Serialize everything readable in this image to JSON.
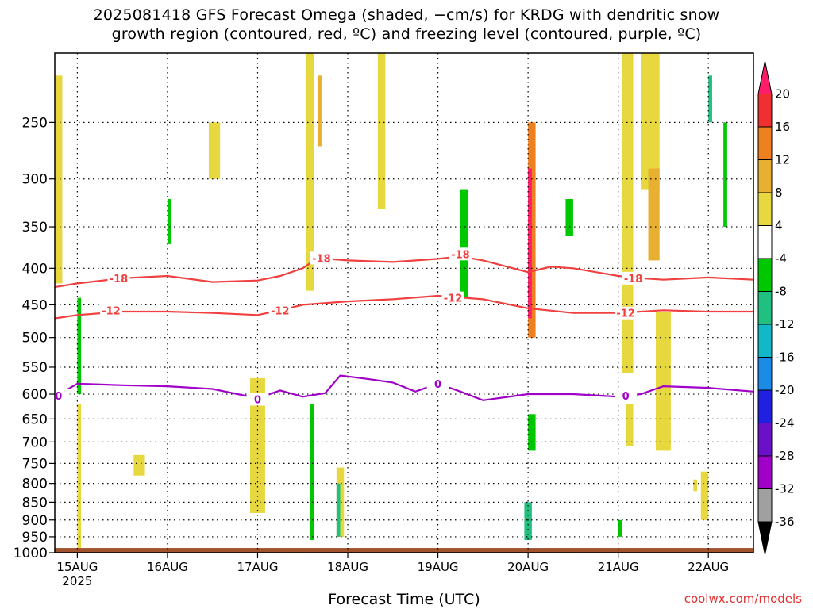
{
  "title": {
    "line1": "2025081418 GFS Forecast Omega (shaded, −cm/s) for KRDG with dendritic snow",
    "line2": "growth region (contoured, red, ºC) and freezing level (contoured, purple, ºC)"
  },
  "xlabel": "Forecast Time (UTC)",
  "credit": "coolwx.com/models",
  "chart_data": {
    "type": "heatmap",
    "title": "2025081418 GFS Forecast Omega (shaded, −cm/s) for KRDG with dendritic snow growth region (contoured, red, ºC) and freezing level (contoured, purple, ºC)",
    "xlabel": "Forecast Time (UTC)",
    "ylabel": "",
    "y_scale": "log",
    "ylim": [
      1000,
      200
    ],
    "xlim": [
      "2025-08-14T18",
      "2025-08-22T12"
    ],
    "y_ticks": [
      250,
      300,
      350,
      400,
      450,
      500,
      550,
      600,
      650,
      700,
      750,
      800,
      850,
      900,
      950,
      1000
    ],
    "x_ticks": [
      {
        "t": "2025-08-15T00",
        "label": "15AUG",
        "sub": "2025"
      },
      {
        "t": "2025-08-16T00",
        "label": "16AUG"
      },
      {
        "t": "2025-08-17T00",
        "label": "17AUG"
      },
      {
        "t": "2025-08-18T00",
        "label": "18AUG"
      },
      {
        "t": "2025-08-19T00",
        "label": "19AUG"
      },
      {
        "t": "2025-08-20T00",
        "label": "20AUG"
      },
      {
        "t": "2025-08-21T00",
        "label": "21AUG"
      },
      {
        "t": "2025-08-22T00",
        "label": "22AUG"
      }
    ],
    "grid": true,
    "ground_level_hpa": 985,
    "colorbar": {
      "labels": [
        20,
        16,
        12,
        8,
        4,
        -4,
        -8,
        -12,
        -16,
        -20,
        -24,
        -28,
        -32,
        -36
      ],
      "colors": [
        "#ff1c6a",
        "#f03030",
        "#ee8020",
        "#e8b030",
        "#e8d840",
        "#ffffff",
        "#00c800",
        "#20c080",
        "#10b8c8",
        "#1a8ce8",
        "#2020e0",
        "#6a10c8",
        "#a000c8",
        "#a0a0a0",
        "#000000"
      ]
    },
    "omega_regions": [
      {
        "t0": "2025-08-15T00",
        "t1": "2025-08-15T01",
        "p_top": 620,
        "p_bot": 985,
        "v": 5
      },
      {
        "t0": "2025-08-14T18",
        "t1": "2025-08-14T20",
        "p_top": 215,
        "p_bot": 420,
        "v": 5
      },
      {
        "t0": "2025-08-15T15",
        "t1": "2025-08-15T18",
        "p_top": 730,
        "p_bot": 780,
        "v": 5
      },
      {
        "t0": "2025-08-16T11",
        "t1": "2025-08-16T14",
        "p_top": 250,
        "p_bot": 300,
        "v": 5
      },
      {
        "t0": "2025-08-16T22",
        "t1": "2025-08-17T02",
        "p_top": 570,
        "p_bot": 880,
        "v": 6
      },
      {
        "t0": "2025-08-17T13",
        "t1": "2025-08-17T15",
        "p_top": 200,
        "p_bot": 430,
        "v": 6
      },
      {
        "t0": "2025-08-17T16",
        "t1": "2025-08-17T17",
        "p_top": 215,
        "p_bot": 270,
        "v": 11
      },
      {
        "t0": "2025-08-17T21",
        "t1": "2025-08-17T23",
        "p_top": 760,
        "p_bot": 950,
        "v": 6
      },
      {
        "t0": "2025-08-18T08",
        "t1": "2025-08-18T10",
        "p_top": 200,
        "p_bot": 330,
        "v": 5
      },
      {
        "t0": "2025-08-20T00",
        "t1": "2025-08-20T02",
        "p_top": 250,
        "p_bot": 500,
        "v": 12
      },
      {
        "t0": "2025-08-20T00",
        "t1": "2025-08-20T01",
        "p_top": 290,
        "p_bot": 470,
        "v": 20
      },
      {
        "t0": "2025-08-21T01",
        "t1": "2025-08-21T04",
        "p_top": 200,
        "p_bot": 560,
        "v": 5
      },
      {
        "t0": "2025-08-21T02",
        "t1": "2025-08-21T04",
        "p_top": 620,
        "p_bot": 710,
        "v": 5
      },
      {
        "t0": "2025-08-21T06",
        "t1": "2025-08-21T11",
        "p_top": 200,
        "p_bot": 310,
        "v": 5
      },
      {
        "t0": "2025-08-21T08",
        "t1": "2025-08-21T11",
        "p_top": 290,
        "p_bot": 390,
        "v": 9
      },
      {
        "t0": "2025-08-21T10",
        "t1": "2025-08-21T14",
        "p_top": 460,
        "p_bot": 720,
        "v": 5
      },
      {
        "t0": "2025-08-21T20",
        "t1": "2025-08-21T21",
        "p_top": 790,
        "p_bot": 820,
        "v": 5
      },
      {
        "t0": "2025-08-21T22",
        "t1": "2025-08-22T00",
        "p_top": 770,
        "p_bot": 900,
        "v": 5
      },
      {
        "t0": "2025-08-15T00",
        "t1": "2025-08-15T01",
        "p_top": 440,
        "p_bot": 600,
        "v": -6
      },
      {
        "t0": "2025-08-16T00",
        "t1": "2025-08-16T01",
        "p_top": 320,
        "p_bot": 370,
        "v": -6
      },
      {
        "t0": "2025-08-17T14",
        "t1": "2025-08-17T15",
        "p_top": 620,
        "p_bot": 960,
        "v": -6
      },
      {
        "t0": "2025-08-17T21",
        "t1": "2025-08-17T22",
        "p_top": 800,
        "p_bot": 950,
        "v": -10
      },
      {
        "t0": "2025-08-19T06",
        "t1": "2025-08-19T08",
        "p_top": 310,
        "p_bot": 440,
        "v": -6
      },
      {
        "t0": "2025-08-20T00",
        "t1": "2025-08-20T02",
        "p_top": 640,
        "p_bot": 720,
        "v": -6
      },
      {
        "t0": "2025-08-19T23",
        "t1": "2025-08-20T01",
        "p_top": 850,
        "p_bot": 960,
        "v": -10
      },
      {
        "t0": "2025-08-20T10",
        "t1": "2025-08-20T12",
        "p_top": 320,
        "p_bot": 360,
        "v": -6
      },
      {
        "t0": "2025-08-21T00",
        "t1": "2025-08-21T01",
        "p_top": 900,
        "p_bot": 950,
        "v": -6
      },
      {
        "t0": "2025-08-22T00",
        "t1": "2025-08-22T01",
        "p_top": 215,
        "p_bot": 250,
        "v": -10
      },
      {
        "t0": "2025-08-22T04",
        "t1": "2025-08-22T05",
        "p_top": 250,
        "p_bot": 350,
        "v": -6
      }
    ],
    "contours": [
      {
        "name": "-18",
        "color": "#f04040",
        "labels": [
          {
            "t": "2025-08-15T11",
            "p": 413
          },
          {
            "t": "2025-08-17T17",
            "p": 387
          },
          {
            "t": "2025-08-19T06",
            "p": 382
          },
          {
            "t": "2025-08-21T04",
            "p": 413
          }
        ],
        "points": [
          [
            "2025-08-14T18",
            425
          ],
          [
            "2025-08-15T00",
            420
          ],
          [
            "2025-08-15T12",
            413
          ],
          [
            "2025-08-16T00",
            410
          ],
          [
            "2025-08-16T12",
            418
          ],
          [
            "2025-08-17T00",
            416
          ],
          [
            "2025-08-17T06",
            410
          ],
          [
            "2025-08-17T12",
            400
          ],
          [
            "2025-08-17T16",
            387
          ],
          [
            "2025-08-18T00",
            390
          ],
          [
            "2025-08-18T12",
            392
          ],
          [
            "2025-08-19T00",
            388
          ],
          [
            "2025-08-19T06",
            385
          ],
          [
            "2025-08-19T12",
            390
          ],
          [
            "2025-08-20T00",
            405
          ],
          [
            "2025-08-20T06",
            398
          ],
          [
            "2025-08-20T12",
            400
          ],
          [
            "2025-08-21T00",
            410
          ],
          [
            "2025-08-21T06",
            413
          ],
          [
            "2025-08-21T12",
            415
          ],
          [
            "2025-08-22T00",
            412
          ],
          [
            "2025-08-22T12",
            415
          ]
        ]
      },
      {
        "name": "-12",
        "color": "#f04040",
        "labels": [
          {
            "t": "2025-08-15T09",
            "p": 458
          },
          {
            "t": "2025-08-17T06",
            "p": 458
          },
          {
            "t": "2025-08-19T04",
            "p": 440
          },
          {
            "t": "2025-08-21T02",
            "p": 462
          }
        ],
        "points": [
          [
            "2025-08-14T18",
            470
          ],
          [
            "2025-08-15T00",
            465
          ],
          [
            "2025-08-15T12",
            460
          ],
          [
            "2025-08-16T00",
            460
          ],
          [
            "2025-08-16T12",
            462
          ],
          [
            "2025-08-17T00",
            465
          ],
          [
            "2025-08-17T06",
            458
          ],
          [
            "2025-08-17T12",
            450
          ],
          [
            "2025-08-18T00",
            445
          ],
          [
            "2025-08-18T12",
            442
          ],
          [
            "2025-08-19T00",
            437
          ],
          [
            "2025-08-19T12",
            442
          ],
          [
            "2025-08-20T00",
            455
          ],
          [
            "2025-08-20T12",
            462
          ],
          [
            "2025-08-21T00",
            462
          ],
          [
            "2025-08-21T12",
            458
          ],
          [
            "2025-08-22T00",
            460
          ],
          [
            "2025-08-22T12",
            460
          ]
        ]
      },
      {
        "name": "0",
        "color": "#a000c8",
        "labels": [
          {
            "t": "2025-08-14T19",
            "p": 603
          },
          {
            "t": "2025-08-17T00",
            "p": 610
          },
          {
            "t": "2025-08-19T00",
            "p": 580
          },
          {
            "t": "2025-08-21T02",
            "p": 603
          }
        ],
        "points": [
          [
            "2025-08-14T18",
            605
          ],
          [
            "2025-08-15T00",
            580
          ],
          [
            "2025-08-15T12",
            583
          ],
          [
            "2025-08-16T00",
            585
          ],
          [
            "2025-08-16T12",
            590
          ],
          [
            "2025-08-17T00",
            608
          ],
          [
            "2025-08-17T06",
            593
          ],
          [
            "2025-08-17T12",
            605
          ],
          [
            "2025-08-17T18",
            598
          ],
          [
            "2025-08-17T22",
            565
          ],
          [
            "2025-08-18T06",
            572
          ],
          [
            "2025-08-18T12",
            578
          ],
          [
            "2025-08-18T18",
            595
          ],
          [
            "2025-08-19T00",
            580
          ],
          [
            "2025-08-19T06",
            595
          ],
          [
            "2025-08-19T12",
            612
          ],
          [
            "2025-08-20T00",
            600
          ],
          [
            "2025-08-20T12",
            600
          ],
          [
            "2025-08-21T00",
            605
          ],
          [
            "2025-08-21T06",
            600
          ],
          [
            "2025-08-21T12",
            585
          ],
          [
            "2025-08-22T00",
            588
          ],
          [
            "2025-08-22T12",
            595
          ]
        ]
      }
    ]
  }
}
